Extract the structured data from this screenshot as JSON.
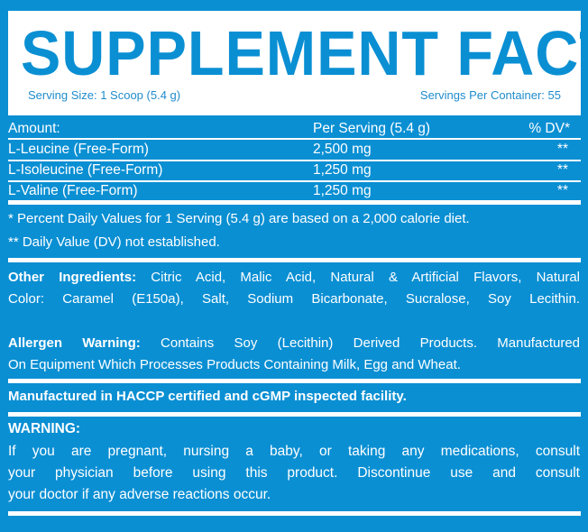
{
  "header": {
    "title": "SUPPLEMENT FACTS",
    "serving_size": "Serving Size: 1 Scoop (5.4 g)",
    "servings_per_container": "Servings Per Container: 55"
  },
  "table": {
    "columns": [
      "Amount:",
      "Per Serving (5.4 g)",
      "% DV*"
    ],
    "rows": [
      {
        "name": "L-Leucine (Free-Form)",
        "amount": "2,500 mg",
        "dv": "**"
      },
      {
        "name": "L-Isoleucine (Free-Form)",
        "amount": "1,250 mg",
        "dv": "**"
      },
      {
        "name": "L-Valine (Free-Form)",
        "amount": "1,250 mg",
        "dv": "**"
      }
    ]
  },
  "footnotes": [
    "* Percent Daily Values for 1 Serving (5.4 g) are based on a 2,000 calorie diet.",
    "** Daily Value (DV) not established."
  ],
  "other_ingredients": {
    "label": "Other Ingredients:",
    "lines": [
      " Citric Acid, Malic Acid, Natural & Artificial Flavors, Natural",
      "Color: Caramel (E150a), Salt, Sodium Bicarbonate, Sucralose, Soy Lecithin."
    ]
  },
  "allergen": {
    "label": "Allergen Warning:",
    "lines": [
      " Contains Soy (Lecithin) Derived Products. Manufactured",
      "On Equipment Which Processes Products Containing Milk, Egg and Wheat."
    ]
  },
  "manufacturing": "Manufactured in HACCP certified and cGMP inspected facility.",
  "warning": {
    "label": "WARNING:",
    "lines": [
      "If you are pregnant, nursing a baby, or taking any medications, consult",
      "your physician before using this product. Discontinue use and consult",
      "your doctor if any adverse reactions occur."
    ]
  },
  "colors": {
    "brand_blue": "#0a8fd3",
    "text": "#ffffff"
  }
}
